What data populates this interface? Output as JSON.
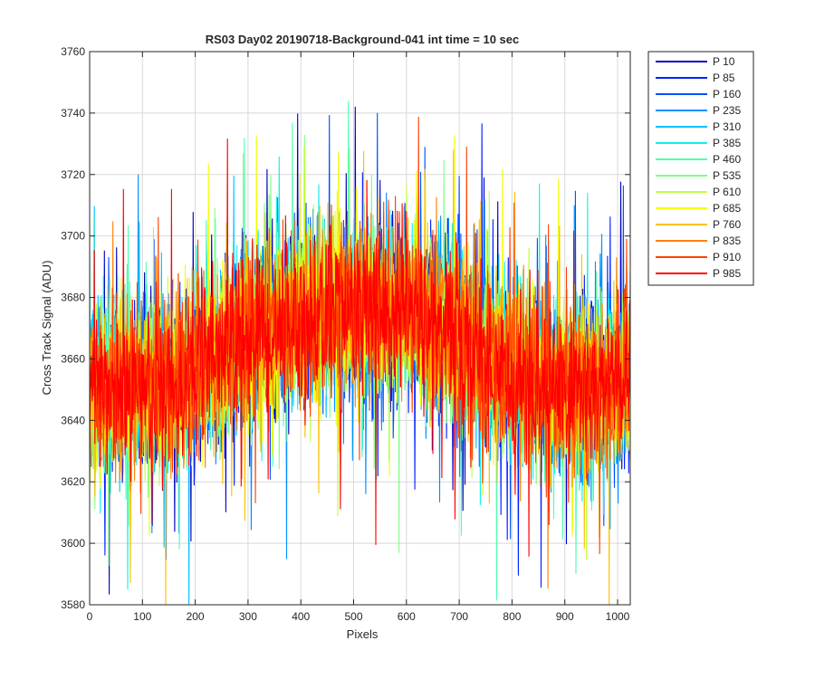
{
  "chart_data": {
    "type": "line",
    "title": "RS03 Day02 20190718-Background-041 int time = 10 sec",
    "xlabel": "Pixels",
    "ylabel": "Cross Track Signal (ADU)",
    "xlim": [
      0,
      1024
    ],
    "ylim": [
      3580,
      3760
    ],
    "xticks": [
      "0",
      "100",
      "200",
      "300",
      "400",
      "500",
      "600",
      "700",
      "800",
      "900",
      "1000"
    ],
    "yticks": [
      "3580",
      "3600",
      "3620",
      "3640",
      "3660",
      "3680",
      "3700",
      "3720",
      "3740",
      "3760"
    ],
    "grid": true,
    "legend_position": "outside-top-right",
    "series_profile": {
      "x": [
        0,
        50,
        100,
        150,
        200,
        250,
        300,
        350,
        400,
        450,
        500,
        550,
        600,
        650,
        700,
        750,
        800,
        850,
        900,
        950,
        1024
      ],
      "y": [
        3650,
        3650,
        3652,
        3650,
        3655,
        3662,
        3668,
        3670,
        3673,
        3674,
        3676,
        3676,
        3675,
        3672,
        3667,
        3660,
        3655,
        3652,
        3650,
        3650,
        3652
      ],
      "noise_amplitude_adu": 25
    },
    "series": [
      {
        "name": "P 10",
        "color": "#0000bf"
      },
      {
        "name": "P 85",
        "color": "#0020ff"
      },
      {
        "name": "P 160",
        "color": "#0050ff"
      },
      {
        "name": "P 235",
        "color": "#0090ff"
      },
      {
        "name": "P 310",
        "color": "#00c0ff"
      },
      {
        "name": "P 385",
        "color": "#10f0ef"
      },
      {
        "name": "P 460",
        "color": "#50ffaf"
      },
      {
        "name": "P 535",
        "color": "#80ff80"
      },
      {
        "name": "P 610",
        "color": "#c0ff40"
      },
      {
        "name": "P 685",
        "color": "#f0ff00"
      },
      {
        "name": "P 760",
        "color": "#ffc000"
      },
      {
        "name": "P 835",
        "color": "#ff8000"
      },
      {
        "name": "P 910",
        "color": "#ff4000"
      },
      {
        "name": "P 985",
        "color": "#ff0000"
      }
    ]
  }
}
